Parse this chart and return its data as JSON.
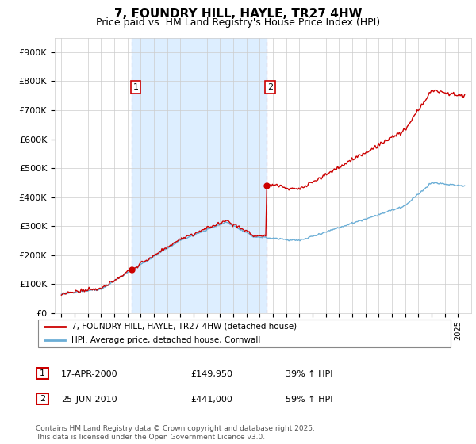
{
  "title": "7, FOUNDRY HILL, HAYLE, TR27 4HW",
  "subtitle": "Price paid vs. HM Land Registry's House Price Index (HPI)",
  "yticks": [
    0,
    100000,
    200000,
    300000,
    400000,
    500000,
    600000,
    700000,
    800000,
    900000
  ],
  "ytick_labels": [
    "£0",
    "£100K",
    "£200K",
    "£300K",
    "£400K",
    "£500K",
    "£600K",
    "£700K",
    "£800K",
    "£900K"
  ],
  "hpi_color": "#6baed6",
  "price_color": "#cc0000",
  "background_color": "#ffffff",
  "grid_color": "#cccccc",
  "fill_color": "#ddeeff",
  "vline1_color": "#aaaacc",
  "vline2_color": "#cc6666",
  "t1_year": 2000.33,
  "t2_year": 2010.5,
  "sale1_price": 149950,
  "sale2_price": 441000,
  "legend_label1": "7, FOUNDRY HILL, HAYLE, TR27 4HW (detached house)",
  "legend_label2": "HPI: Average price, detached house, Cornwall",
  "footnote": "Contains HM Land Registry data © Crown copyright and database right 2025.\nThis data is licensed under the Open Government Licence v3.0.",
  "table_row1": [
    "1",
    "17-APR-2000",
    "£149,950",
    "39% ↑ HPI"
  ],
  "table_row2": [
    "2",
    "25-JUN-2010",
    "£441,000",
    "59% ↑ HPI"
  ],
  "t_start": 1995.0,
  "t_end": 2025.5,
  "xlim_left": 1994.5,
  "xlim_right": 2026.0,
  "ylim_top": 950000
}
